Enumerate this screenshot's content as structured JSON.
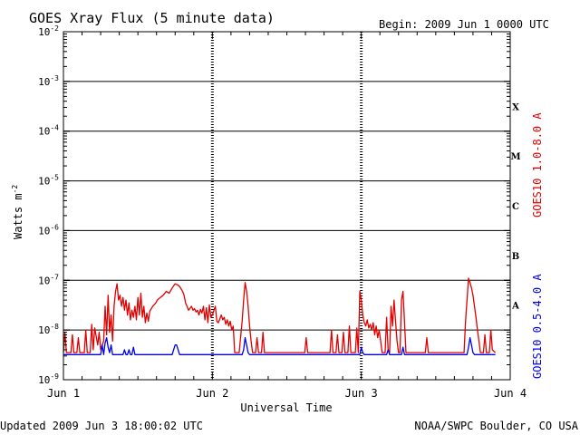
{
  "header": {
    "title": "GOES Xray Flux (5 minute data)",
    "begin": "Begin:  2009 Jun 1 0000 UTC"
  },
  "footer": {
    "updated": "Updated 2009 Jun  3 18:00:02 UTC",
    "credit": "NOAA/SWPC Boulder, CO USA"
  },
  "colors": {
    "long_channel": "#e00000",
    "short_channel": "#0000ee",
    "axis": "#000000",
    "background": "#ffffff"
  },
  "chart_data": {
    "type": "line",
    "title": "GOES Xray Flux (5 minute data)",
    "xlabel": "Universal Time",
    "ylabel": "Watts m",
    "ylabel_exponent": "-2",
    "y_scale": "log",
    "ylim": [
      1e-09,
      0.01
    ],
    "xlim_days": [
      0,
      3
    ],
    "x_ticks": [
      {
        "day": 0,
        "label": "Jun 1"
      },
      {
        "day": 1,
        "label": "Jun 2"
      },
      {
        "day": 2,
        "label": "Jun 3"
      },
      {
        "day": 3,
        "label": "Jun 4"
      }
    ],
    "y_ticks": [
      {
        "exp": -9,
        "base": "10",
        "sup": "-9"
      },
      {
        "exp": -8,
        "base": "10",
        "sup": "-8"
      },
      {
        "exp": -7,
        "base": "10",
        "sup": "-7"
      },
      {
        "exp": -6,
        "base": "10",
        "sup": "-6"
      },
      {
        "exp": -5,
        "base": "10",
        "sup": "-5"
      },
      {
        "exp": -4,
        "base": "10",
        "sup": "-4"
      },
      {
        "exp": -3,
        "base": "10",
        "sup": "-3"
      },
      {
        "exp": -2,
        "base": "10",
        "sup": "-2"
      }
    ],
    "gridlines_y_exp": [
      -8,
      -7,
      -6,
      -5,
      -4,
      -3
    ],
    "flare_classes": [
      {
        "label": "A",
        "exp": -8
      },
      {
        "label": "B",
        "exp": -7
      },
      {
        "label": "C",
        "exp": -6
      },
      {
        "label": "M",
        "exp": -5
      },
      {
        "label": "X",
        "exp": -4
      }
    ],
    "series": [
      {
        "name": "GOES10 1.0-8.0 A",
        "color": "#e00000",
        "points": [
          [
            0.0,
            3.5e-09
          ],
          [
            0.01,
            9e-09
          ],
          [
            0.02,
            3.5e-09
          ],
          [
            0.05,
            3.5e-09
          ],
          [
            0.06,
            8e-09
          ],
          [
            0.07,
            3.5e-09
          ],
          [
            0.09,
            3.5e-09
          ],
          [
            0.1,
            7e-09
          ],
          [
            0.11,
            3.5e-09
          ],
          [
            0.14,
            3.5e-09
          ],
          [
            0.15,
            1e-08
          ],
          [
            0.16,
            3.5e-09
          ],
          [
            0.18,
            3.5e-09
          ],
          [
            0.19,
            1.3e-08
          ],
          [
            0.2,
            4e-09
          ],
          [
            0.21,
            1.1e-08
          ],
          [
            0.23,
            5e-09
          ],
          [
            0.24,
            9e-09
          ],
          [
            0.25,
            4e-09
          ],
          [
            0.27,
            6e-09
          ],
          [
            0.28,
            3e-08
          ],
          [
            0.29,
            8e-09
          ],
          [
            0.3,
            5e-08
          ],
          [
            0.31,
            9e-09
          ],
          [
            0.32,
            2e-08
          ],
          [
            0.33,
            6e-09
          ],
          [
            0.34,
            3e-08
          ],
          [
            0.35,
            6e-08
          ],
          [
            0.36,
            8.5e-08
          ],
          [
            0.37,
            4e-08
          ],
          [
            0.38,
            5e-08
          ],
          [
            0.39,
            3e-08
          ],
          [
            0.4,
            4.5e-08
          ],
          [
            0.41,
            2.5e-08
          ],
          [
            0.42,
            4e-08
          ],
          [
            0.43,
            2e-08
          ],
          [
            0.44,
            3.5e-08
          ],
          [
            0.45,
            1.6e-08
          ],
          [
            0.46,
            2.5e-08
          ],
          [
            0.47,
            1.8e-08
          ],
          [
            0.48,
            3e-08
          ],
          [
            0.49,
            1.6e-08
          ],
          [
            0.5,
            4.5e-08
          ],
          [
            0.51,
            2e-08
          ],
          [
            0.52,
            5.5e-08
          ],
          [
            0.53,
            1.8e-08
          ],
          [
            0.54,
            3e-08
          ],
          [
            0.55,
            1.4e-08
          ],
          [
            0.56,
            2.2e-08
          ],
          [
            0.57,
            1.5e-08
          ],
          [
            0.58,
            2.4e-08
          ],
          [
            0.6,
            3e-08
          ],
          [
            0.62,
            3.5e-08
          ],
          [
            0.63,
            4e-08
          ],
          [
            0.65,
            4.5e-08
          ],
          [
            0.67,
            5e-08
          ],
          [
            0.69,
            6e-08
          ],
          [
            0.71,
            5.5e-08
          ],
          [
            0.73,
            7e-08
          ],
          [
            0.75,
            8.5e-08
          ],
          [
            0.77,
            8e-08
          ],
          [
            0.78,
            7.5e-08
          ],
          [
            0.8,
            6e-08
          ],
          [
            0.81,
            5e-08
          ],
          [
            0.82,
            3.5e-08
          ],
          [
            0.83,
            3e-08
          ],
          [
            0.84,
            2.5e-08
          ],
          [
            0.86,
            3e-08
          ],
          [
            0.87,
            2.5e-08
          ],
          [
            0.88,
            2.7e-08
          ],
          [
            0.89,
            2.3e-08
          ],
          [
            0.9,
            2.5e-08
          ],
          [
            0.91,
            2e-08
          ],
          [
            0.92,
            2.6e-08
          ],
          [
            0.93,
            2.2e-08
          ],
          [
            0.94,
            3e-08
          ],
          [
            0.95,
            1.6e-08
          ],
          [
            0.96,
            2.8e-08
          ],
          [
            0.97,
            1.4e-08
          ],
          [
            0.98,
            3.2e-08
          ],
          [
            0.99,
            1.8e-08
          ],
          [
            1.0,
            2e-08
          ],
          [
            1.02,
            3e-08
          ],
          [
            1.03,
            1.5e-08
          ],
          [
            1.04,
            1.4e-08
          ],
          [
            1.06,
            2e-08
          ],
          [
            1.07,
            1.6e-08
          ],
          [
            1.08,
            1.8e-08
          ],
          [
            1.09,
            1.3e-08
          ],
          [
            1.1,
            1.6e-08
          ],
          [
            1.11,
            1.2e-08
          ],
          [
            1.12,
            1.5e-08
          ],
          [
            1.13,
            1e-08
          ],
          [
            1.14,
            1.2e-08
          ],
          [
            1.15,
            3.5e-09
          ],
          [
            1.18,
            3.5e-09
          ],
          [
            1.2,
            1.5e-08
          ],
          [
            1.21,
            4e-08
          ],
          [
            1.22,
            9e-08
          ],
          [
            1.23,
            6e-08
          ],
          [
            1.24,
            3e-08
          ],
          [
            1.25,
            1.2e-08
          ],
          [
            1.26,
            6e-09
          ],
          [
            1.27,
            3.5e-09
          ],
          [
            1.29,
            3.5e-09
          ],
          [
            1.3,
            7e-09
          ],
          [
            1.31,
            3.5e-09
          ],
          [
            1.33,
            3.5e-09
          ],
          [
            1.34,
            9e-09
          ],
          [
            1.35,
            3.5e-09
          ],
          [
            1.62,
            3.5e-09
          ],
          [
            1.63,
            7e-09
          ],
          [
            1.64,
            3.5e-09
          ],
          [
            1.79,
            3.5e-09
          ],
          [
            1.8,
            1e-08
          ],
          [
            1.81,
            3.5e-09
          ],
          [
            1.83,
            3.5e-09
          ],
          [
            1.84,
            8e-09
          ],
          [
            1.85,
            3.5e-09
          ],
          [
            1.87,
            3.5e-09
          ],
          [
            1.88,
            9e-09
          ],
          [
            1.89,
            3.5e-09
          ],
          [
            1.91,
            3.5e-09
          ],
          [
            1.92,
            1.2e-08
          ],
          [
            1.93,
            3.5e-09
          ],
          [
            1.96,
            3.5e-09
          ],
          [
            1.97,
            1.1e-08
          ],
          [
            1.98,
            3.5e-09
          ],
          [
            1.99,
            6e-08
          ],
          [
            2.0,
            4e-08
          ],
          [
            2.01,
            2e-08
          ],
          [
            2.02,
            1.4e-08
          ],
          [
            2.03,
            1.2e-08
          ],
          [
            2.04,
            1.6e-08
          ],
          [
            2.05,
            1.1e-08
          ],
          [
            2.06,
            1.3e-08
          ],
          [
            2.07,
            1e-08
          ],
          [
            2.08,
            1.4e-08
          ],
          [
            2.09,
            8e-09
          ],
          [
            2.1,
            1.2e-08
          ],
          [
            2.11,
            7e-09
          ],
          [
            2.12,
            1e-08
          ],
          [
            2.13,
            6e-09
          ],
          [
            2.14,
            3.5e-09
          ],
          [
            2.16,
            3.5e-09
          ],
          [
            2.17,
            1.8e-08
          ],
          [
            2.18,
            4e-09
          ],
          [
            2.19,
            3.5e-09
          ],
          [
            2.2,
            3e-08
          ],
          [
            2.21,
            1.2e-08
          ],
          [
            2.22,
            4e-08
          ],
          [
            2.23,
            1.5e-08
          ],
          [
            2.24,
            6e-09
          ],
          [
            2.25,
            3.5e-09
          ],
          [
            2.26,
            3.5e-09
          ],
          [
            2.27,
            4e-08
          ],
          [
            2.28,
            6e-08
          ],
          [
            2.29,
            1.5e-08
          ],
          [
            2.3,
            3.5e-09
          ],
          [
            2.43,
            3.5e-09
          ],
          [
            2.44,
            7e-09
          ],
          [
            2.45,
            3.5e-09
          ],
          [
            2.69,
            3.5e-09
          ],
          [
            2.7,
            1.5e-08
          ],
          [
            2.71,
            4e-08
          ],
          [
            2.72,
            1.1e-07
          ],
          [
            2.73,
            9e-08
          ],
          [
            2.74,
            7e-08
          ],
          [
            2.75,
            5e-08
          ],
          [
            2.76,
            3e-08
          ],
          [
            2.77,
            1.8e-08
          ],
          [
            2.78,
            1e-08
          ],
          [
            2.79,
            6e-09
          ],
          [
            2.8,
            3.5e-09
          ],
          [
            2.82,
            3.5e-09
          ],
          [
            2.83,
            8e-09
          ],
          [
            2.84,
            3.5e-09
          ],
          [
            2.86,
            3.5e-09
          ],
          [
            2.87,
            1e-08
          ],
          [
            2.88,
            4e-09
          ],
          [
            2.9,
            3.5e-09
          ]
        ]
      },
      {
        "name": "GOES10 0.5-4.0 A",
        "color": "#0000ee",
        "points": [
          [
            0.0,
            3.2e-09
          ],
          [
            0.25,
            3.2e-09
          ],
          [
            0.26,
            5e-09
          ],
          [
            0.27,
            3.2e-09
          ],
          [
            0.28,
            5.5e-09
          ],
          [
            0.29,
            7e-09
          ],
          [
            0.3,
            4.5e-09
          ],
          [
            0.31,
            3.5e-09
          ],
          [
            0.32,
            5e-09
          ],
          [
            0.33,
            3.2e-09
          ],
          [
            0.4,
            3.2e-09
          ],
          [
            0.41,
            4e-09
          ],
          [
            0.42,
            3.2e-09
          ],
          [
            0.43,
            3.2e-09
          ],
          [
            0.44,
            4e-09
          ],
          [
            0.45,
            3.2e-09
          ],
          [
            0.46,
            3.2e-09
          ],
          [
            0.47,
            4.5e-09
          ],
          [
            0.48,
            3.2e-09
          ],
          [
            0.73,
            3.2e-09
          ],
          [
            0.74,
            4e-09
          ],
          [
            0.75,
            5e-09
          ],
          [
            0.76,
            5e-09
          ],
          [
            0.77,
            4e-09
          ],
          [
            0.78,
            3.2e-09
          ],
          [
            1.2,
            3.2e-09
          ],
          [
            1.21,
            4e-09
          ],
          [
            1.22,
            7e-09
          ],
          [
            1.23,
            5e-09
          ],
          [
            1.24,
            3.5e-09
          ],
          [
            1.25,
            3.2e-09
          ],
          [
            1.99,
            3.2e-09
          ],
          [
            2.0,
            4.5e-09
          ],
          [
            2.01,
            3.5e-09
          ],
          [
            2.02,
            3.2e-09
          ],
          [
            2.17,
            3.2e-09
          ],
          [
            2.18,
            4e-09
          ],
          [
            2.19,
            3.2e-09
          ],
          [
            2.27,
            3.2e-09
          ],
          [
            2.28,
            4.5e-09
          ],
          [
            2.29,
            3.2e-09
          ],
          [
            2.71,
            3.2e-09
          ],
          [
            2.72,
            4.5e-09
          ],
          [
            2.73,
            7e-09
          ],
          [
            2.74,
            5e-09
          ],
          [
            2.75,
            3.5e-09
          ],
          [
            2.76,
            3.2e-09
          ],
          [
            2.9,
            3.2e-09
          ]
        ]
      }
    ]
  }
}
